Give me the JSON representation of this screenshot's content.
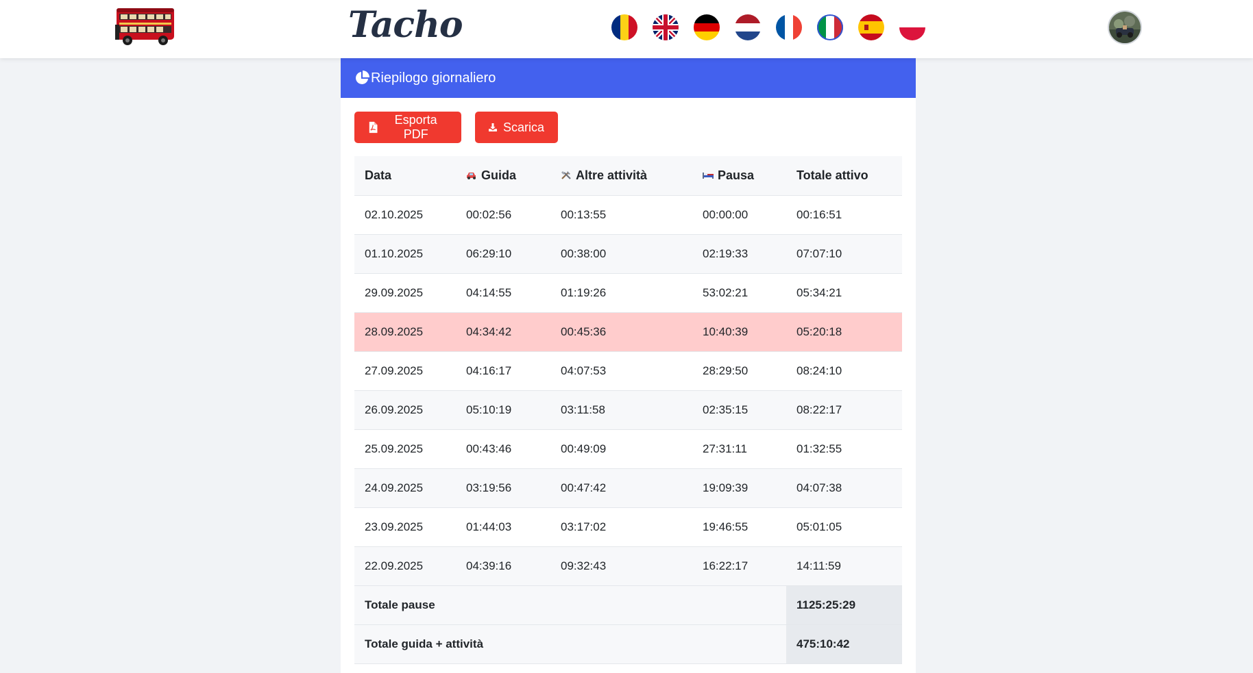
{
  "header": {
    "brand": "Tacho",
    "logo_icon": "double-decker-bus-icon",
    "flags": [
      {
        "name": "flag-romania-icon"
      },
      {
        "name": "flag-uk-icon"
      },
      {
        "name": "flag-germany-icon"
      },
      {
        "name": "flag-netherlands-icon"
      },
      {
        "name": "flag-france-icon"
      },
      {
        "name": "flag-italy-icon"
      },
      {
        "name": "flag-spain-icon"
      },
      {
        "name": "flag-poland-icon"
      }
    ],
    "avatar_icon": "user-avatar"
  },
  "card": {
    "title": "Riepilogo giornaliero",
    "title_icon": "pie-chart-icon",
    "accent_color": "#4361ee"
  },
  "actions": {
    "export_pdf": "Esporta PDF",
    "download": "Scarica",
    "button_color": "#f0392f"
  },
  "table": {
    "headers": [
      "Data",
      "Guida",
      "Altre attività",
      "Pausa",
      "Totale attivo"
    ],
    "header_icons": [
      "",
      "car-icon",
      "tools-icon",
      "bed-icon",
      ""
    ],
    "rows": [
      [
        "02.10.2025",
        "00:02:56",
        "00:13:55",
        "00:00:00",
        "00:16:51"
      ],
      [
        "01.10.2025",
        "06:29:10",
        "00:38:00",
        "02:19:33",
        "07:07:10"
      ],
      [
        "29.09.2025",
        "04:14:55",
        "01:19:26",
        "53:02:21",
        "05:34:21"
      ],
      [
        "28.09.2025",
        "04:34:42",
        "00:45:36",
        "10:40:39",
        "05:20:18"
      ],
      [
        "27.09.2025",
        "04:16:17",
        "04:07:53",
        "28:29:50",
        "08:24:10"
      ],
      [
        "26.09.2025",
        "05:10:19",
        "03:11:58",
        "02:35:15",
        "08:22:17"
      ],
      [
        "25.09.2025",
        "00:43:46",
        "00:49:09",
        "27:31:11",
        "01:32:55"
      ],
      [
        "24.09.2025",
        "03:19:56",
        "00:47:42",
        "19:09:39",
        "04:07:38"
      ],
      [
        "23.09.2025",
        "01:44:03",
        "03:17:02",
        "19:46:55",
        "05:01:05"
      ],
      [
        "22.09.2025",
        "04:39:16",
        "09:32:43",
        "16:22:17",
        "14:11:59"
      ]
    ],
    "highlight_row_color": "#ffcccc",
    "totals": [
      {
        "label": "Totale pause",
        "value": "1125:25:29"
      },
      {
        "label": "Totale guida + attività",
        "value": "475:10:42"
      }
    ]
  }
}
